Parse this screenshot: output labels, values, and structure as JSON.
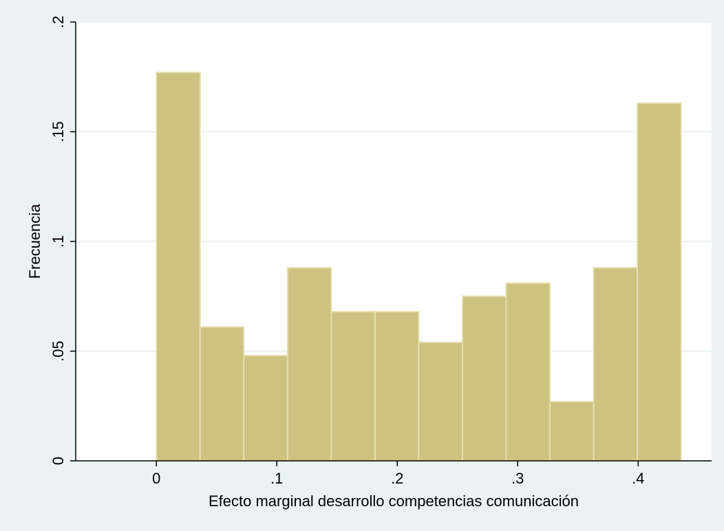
{
  "chart_data": {
    "type": "bar",
    "title": "",
    "xlabel": "Efecto marginal desarrollo competencias comunicación",
    "ylabel": "Frecuencia",
    "xlim": [
      -0.067,
      0.461
    ],
    "ylim": [
      0,
      0.2
    ],
    "xticks": [
      {
        "value": 0,
        "label": "0"
      },
      {
        "value": 0.1,
        "label": ".1"
      },
      {
        "value": 0.2,
        "label": ".2"
      },
      {
        "value": 0.3,
        "label": ".3"
      },
      {
        "value": 0.4,
        "label": ".4"
      }
    ],
    "yticks": [
      {
        "value": 0,
        "label": "0"
      },
      {
        "value": 0.05,
        "label": ".05"
      },
      {
        "value": 0.1,
        "label": ".1"
      },
      {
        "value": 0.15,
        "label": ".15"
      },
      {
        "value": 0.2,
        "label": ".2"
      }
    ],
    "grid": true,
    "bin_start": 0,
    "bin_width": 0.0363,
    "values": [
      0.177,
      0.061,
      0.048,
      0.088,
      0.068,
      0.068,
      0.054,
      0.075,
      0.081,
      0.027,
      0.088,
      0.163
    ],
    "colors": {
      "bar_fill": "#cdc27f",
      "bar_edge": "#e6dfb1",
      "plot_bg": "#ffffff",
      "page_bg": "#eaf2f3",
      "grid": "#e4eef0",
      "axis": "#000000"
    }
  }
}
